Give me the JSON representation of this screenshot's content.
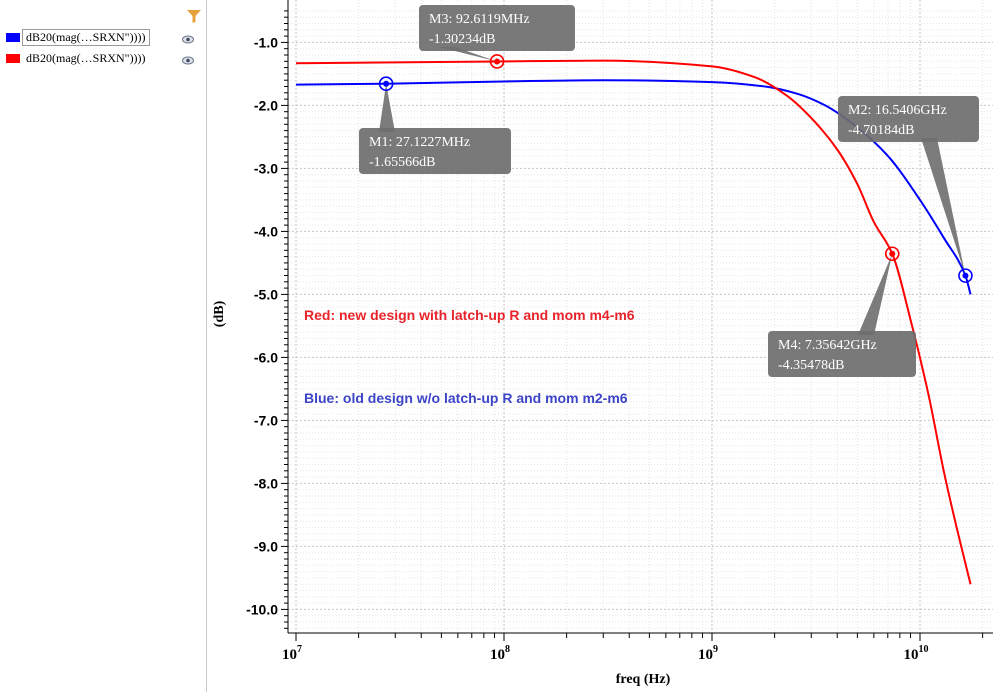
{
  "legend": {
    "items": [
      {
        "label": "dB20(mag(…SRXN\"))))",
        "color": "#0000ff",
        "icon": "eye-icon"
      },
      {
        "label": "dB20(mag(…SRXN\"))))",
        "color": "#ff0000",
        "icon": "eye-icon"
      }
    ],
    "filter_icon": "filter-icon"
  },
  "chart_data": {
    "type": "line",
    "x_scale": "log",
    "xlabel": "freq (Hz)",
    "ylabel": "(dB)",
    "xlim": [
      10000000,
      17500000000
    ],
    "ylim": [
      -10.6,
      -0.5
    ],
    "x_tick_labels": [
      {
        "base": "10",
        "exp": "7",
        "value": 10000000
      },
      {
        "base": "10",
        "exp": "8",
        "value": 100000000
      },
      {
        "base": "10",
        "exp": "9",
        "value": 1000000000
      },
      {
        "base": "10",
        "exp": "10",
        "value": 10000000000
      }
    ],
    "y_ticks": [
      -1.0,
      -2.0,
      -3.0,
      -4.0,
      -5.0,
      -6.0,
      -7.0,
      -8.0,
      -9.0,
      -10.0
    ],
    "y_tick_labels": [
      "-1.0",
      "-2.0",
      "-3.0",
      "-4.0",
      "-5.0",
      "-6.0",
      "-7.0",
      "-8.0",
      "-9.0",
      "-10.0"
    ],
    "grid": true,
    "series": [
      {
        "name": "dB20(mag(…SRXN\"))))",
        "color": "#0000ff",
        "points": [
          [
            10000000,
            -1.67
          ],
          [
            27122700,
            -1.656
          ],
          [
            100000000,
            -1.62
          ],
          [
            300000000,
            -1.6
          ],
          [
            1000000000,
            -1.63
          ],
          [
            1800000000,
            -1.7
          ],
          [
            2600000000,
            -1.82
          ],
          [
            3500000000,
            -2.0
          ],
          [
            5000000000,
            -2.35
          ],
          [
            7000000000,
            -2.8
          ],
          [
            10000000000,
            -3.5
          ],
          [
            13000000000,
            -4.1
          ],
          [
            16540600000,
            -4.70184
          ],
          [
            17500000000,
            -5.0
          ]
        ]
      },
      {
        "name": "dB20(mag(…SRXN\"))))",
        "color": "#ff0000",
        "points": [
          [
            10000000,
            -1.33
          ],
          [
            92611900,
            -1.30234
          ],
          [
            300000000,
            -1.29
          ],
          [
            1000000000,
            -1.38
          ],
          [
            1600000000,
            -1.55
          ],
          [
            2300000000,
            -1.85
          ],
          [
            3000000000,
            -2.2
          ],
          [
            4000000000,
            -2.7
          ],
          [
            5000000000,
            -3.25
          ],
          [
            6000000000,
            -3.85
          ],
          [
            7356420000,
            -4.35478
          ],
          [
            9000000000,
            -5.4
          ],
          [
            11000000000,
            -6.6
          ],
          [
            13000000000,
            -7.8
          ],
          [
            15000000000,
            -8.7
          ],
          [
            17500000000,
            -9.6
          ]
        ]
      }
    ],
    "markers": [
      {
        "id": "M1",
        "line1": "M1: 27.1227MHz",
        "line2": "-1.65566dB",
        "x": 27122700,
        "y": -1.65566,
        "color": "#0000ff"
      },
      {
        "id": "M2",
        "line1": "M2: 16.5406GHz",
        "line2": "-4.70184dB",
        "x": 16540600000,
        "y": -4.70184,
        "color": "#0000ff"
      },
      {
        "id": "M3",
        "line1": "M3: 92.6119MHz",
        "line2": "-1.30234dB",
        "x": 92611900,
        "y": -1.30234,
        "color": "#ff0000"
      },
      {
        "id": "M4",
        "line1": "M4: 7.35642GHz",
        "line2": "-4.35478dB",
        "x": 7356420000,
        "y": -4.35478,
        "color": "#ff0000"
      }
    ],
    "annotations": [
      {
        "text": "Red: new design with latch-up R and mom m4-m6",
        "color": "#e8242a"
      },
      {
        "text": "Blue: old design w/o latch-up R and mom m2-m6",
        "color": "#3c44c8"
      }
    ]
  }
}
